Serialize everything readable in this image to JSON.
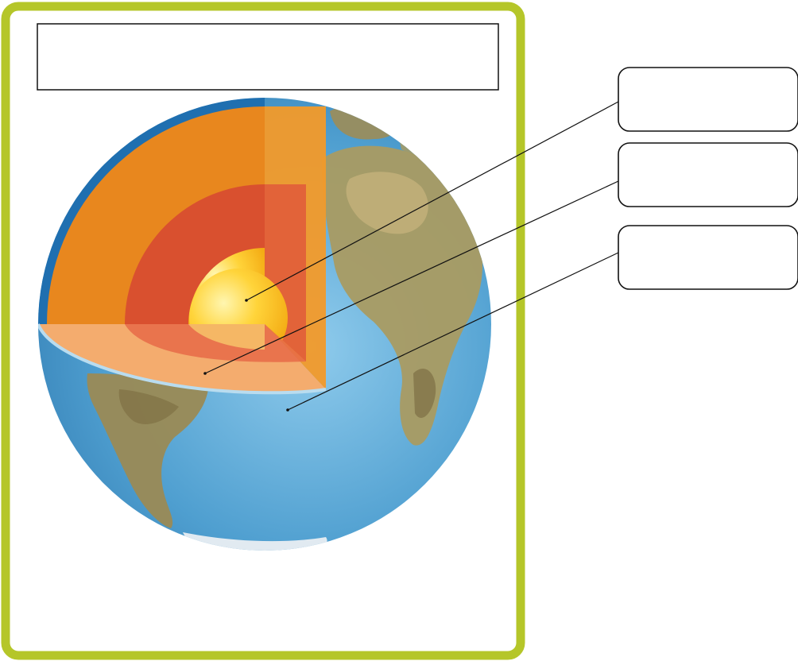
{
  "diagram": {
    "title_box_text": "",
    "labels": [
      {
        "id": "core",
        "text": ""
      },
      {
        "id": "mantle",
        "text": ""
      },
      {
        "id": "crust",
        "text": ""
      }
    ]
  },
  "colors": {
    "frame": "#b5c629",
    "ocean": "#5ba8d4",
    "land": "#9a8a55",
    "crust_edge": "#1f6fb0",
    "outer_mantle": "#e8871e",
    "inner_mantle": "#d9502f",
    "core": "#f7c21a",
    "cut_face": "#f4ac6e"
  }
}
